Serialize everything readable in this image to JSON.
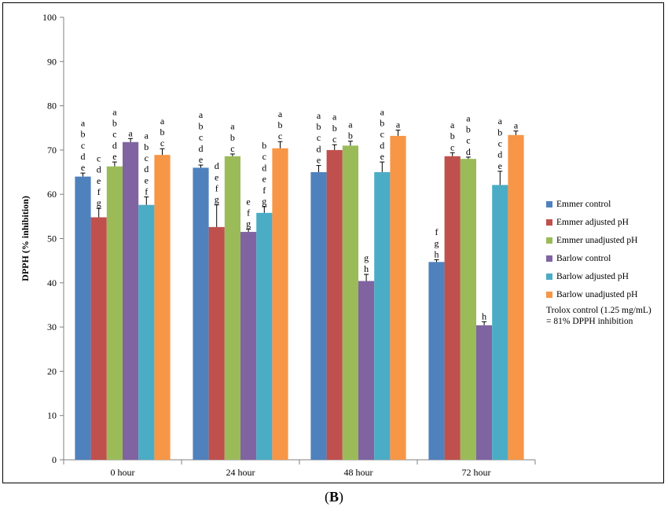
{
  "chart_data": {
    "type": "bar",
    "ylabel": "DPPH (% inhibition)",
    "ylim": [
      0,
      100
    ],
    "yticks": [
      0,
      10,
      20,
      30,
      40,
      50,
      60,
      70,
      80,
      90,
      100
    ],
    "grid": false,
    "legend_position": "right",
    "categories": [
      "0 hour",
      "24 hour",
      "48 hour",
      "72 hour"
    ],
    "series": [
      {
        "name": "Emmer control",
        "color": "#4f81bd",
        "values": [
          64.0,
          66.0,
          65.0,
          44.7
        ],
        "errors": [
          0.8,
          0.6,
          1.5,
          0.5
        ],
        "letters": [
          "abcde",
          "abcde",
          "abcde",
          "fgh"
        ]
      },
      {
        "name": "Emmer adjusted pH",
        "color": "#c0504d",
        "values": [
          54.8,
          52.6,
          70.0,
          68.6
        ],
        "errors": [
          2.0,
          5.0,
          1.2,
          0.8
        ],
        "letters": [
          "cdefg",
          "defg",
          "abc",
          "abc"
        ]
      },
      {
        "name": "Emmer unadjusted pH",
        "color": "#9bbb59",
        "values": [
          66.3,
          68.6,
          71.0,
          68.0
        ],
        "errors": [
          1.0,
          0.5,
          1.0,
          0.4
        ],
        "letters": [
          "abcde",
          "abc",
          "ab",
          "abcd"
        ]
      },
      {
        "name": "Barlow control",
        "color": "#8064a2",
        "values": [
          71.8,
          51.5,
          40.4,
          30.4
        ],
        "errors": [
          0.8,
          0.6,
          1.5,
          0.8
        ],
        "letters": [
          "a",
          "efg",
          "gh",
          "h"
        ]
      },
      {
        "name": "Barlow adjusted pH",
        "color": "#4bacc6",
        "values": [
          57.6,
          55.8,
          65.0,
          62.1
        ],
        "errors": [
          1.8,
          1.4,
          2.3,
          3.1
        ],
        "letters": [
          "abcdef",
          "bcdefg",
          "abcde",
          "abcde"
        ]
      },
      {
        "name": "Barlow unadjusted pH",
        "color": "#f79646",
        "values": [
          68.9,
          70.4,
          73.2,
          73.4
        ],
        "errors": [
          1.4,
          1.5,
          1.3,
          0.9
        ],
        "letters": [
          "abc",
          "abc",
          "a",
          "a"
        ]
      }
    ],
    "annotation": "Trolox control (1.25 mg/mL) = 81% DPPH inhibition"
  },
  "panel_label": "(B)"
}
